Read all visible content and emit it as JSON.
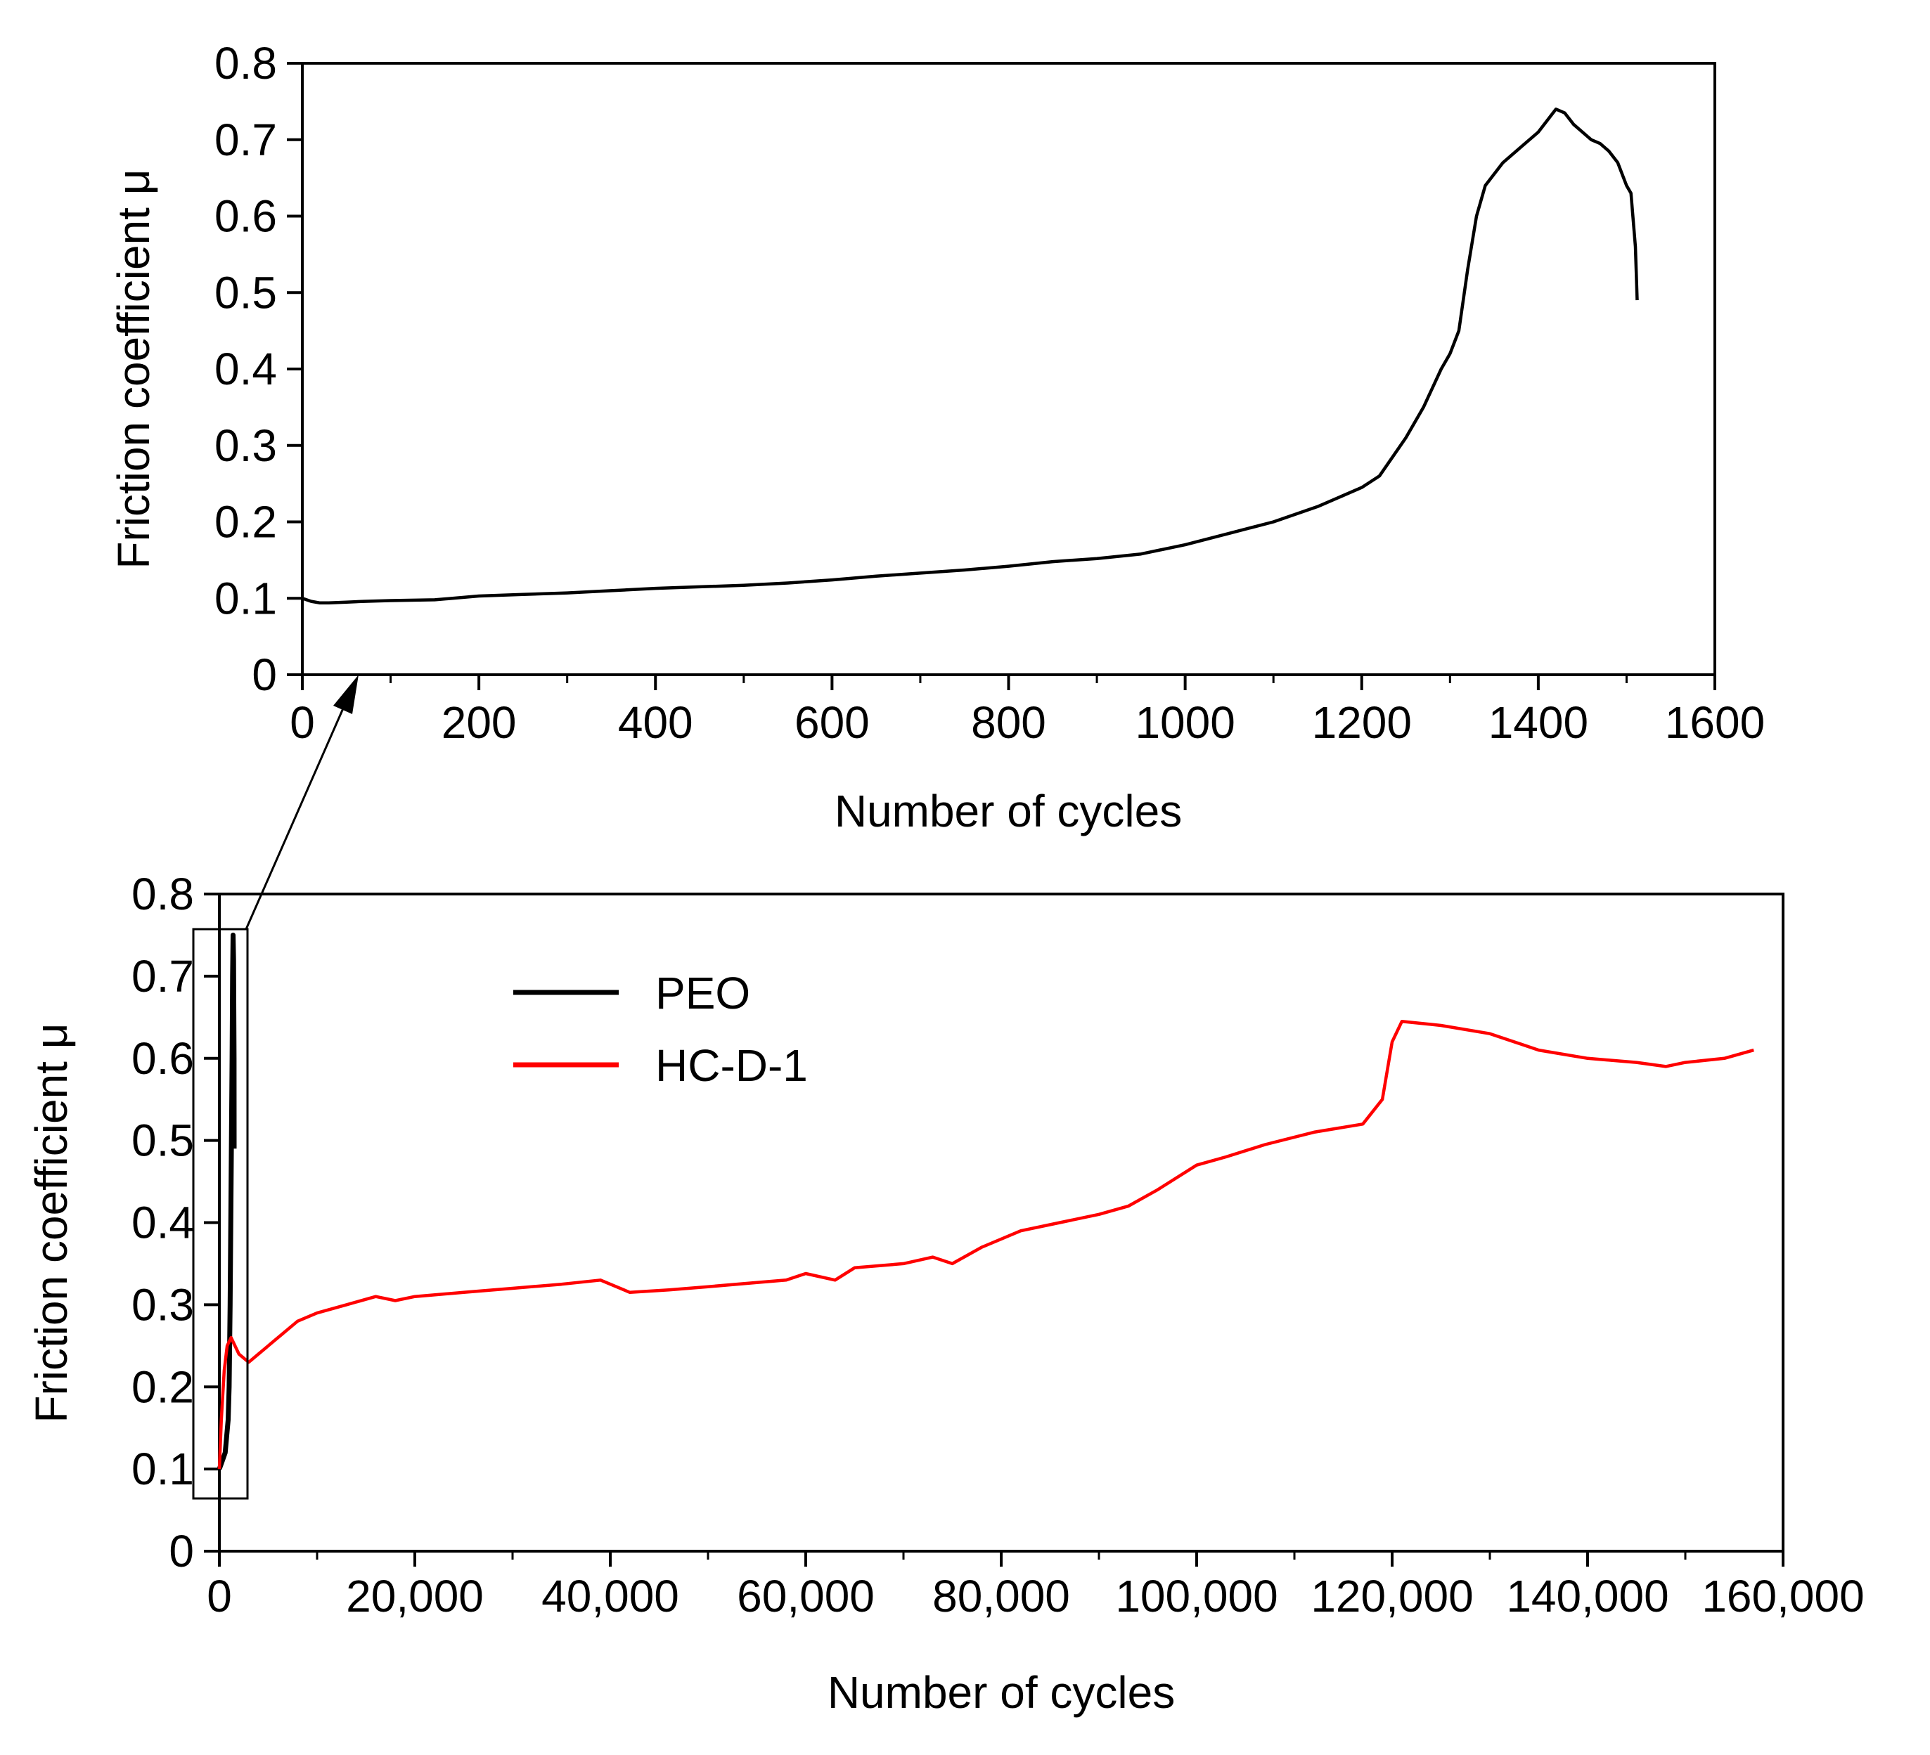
{
  "chart_data": [
    {
      "id": "top",
      "type": "line",
      "title": "",
      "xlabel": "Number of cycles",
      "ylabel": "Friction coefficient μ",
      "xlim": [
        0,
        1600
      ],
      "ylim": [
        0,
        0.8
      ],
      "x_ticks": [
        0,
        200,
        400,
        600,
        800,
        1000,
        1200,
        1400,
        1600
      ],
      "x_tick_labels": [
        "0",
        "200",
        "400",
        "600",
        "800",
        "1000",
        "1200",
        "1400",
        "1600"
      ],
      "y_ticks": [
        0,
        0.1,
        0.2,
        0.3,
        0.4,
        0.5,
        0.6,
        0.7,
        0.8
      ],
      "y_tick_labels": [
        "0",
        "0.1",
        "0.2",
        "0.3",
        "0.4",
        "0.5",
        "0.6",
        "0.7",
        "0.8"
      ],
      "series": [
        {
          "name": "PEO",
          "color": "#000000",
          "x": [
            0,
            10,
            20,
            30,
            50,
            70,
            100,
            150,
            200,
            250,
            300,
            350,
            400,
            450,
            500,
            550,
            600,
            650,
            700,
            750,
            800,
            850,
            900,
            950,
            1000,
            1050,
            1100,
            1150,
            1200,
            1220,
            1250,
            1270,
            1290,
            1300,
            1310,
            1320,
            1330,
            1340,
            1360,
            1380,
            1400,
            1410,
            1420,
            1430,
            1440,
            1450,
            1460,
            1470,
            1480,
            1490,
            1500,
            1505,
            1510,
            1512
          ],
          "y": [
            0.1,
            0.096,
            0.094,
            0.094,
            0.095,
            0.096,
            0.097,
            0.098,
            0.103,
            0.105,
            0.107,
            0.11,
            0.113,
            0.115,
            0.117,
            0.12,
            0.124,
            0.129,
            0.133,
            0.137,
            0.142,
            0.148,
            0.152,
            0.158,
            0.17,
            0.185,
            0.2,
            0.22,
            0.245,
            0.26,
            0.31,
            0.35,
            0.4,
            0.42,
            0.45,
            0.53,
            0.6,
            0.64,
            0.67,
            0.69,
            0.71,
            0.725,
            0.74,
            0.735,
            0.72,
            0.71,
            0.7,
            0.695,
            0.685,
            0.67,
            0.64,
            0.63,
            0.56,
            0.49
          ]
        }
      ]
    },
    {
      "id": "bottom",
      "type": "line",
      "title": "",
      "xlabel": "Number of cycles",
      "ylabel": "Friction coefficient μ",
      "xlim": [
        0,
        160000
      ],
      "ylim": [
        0,
        0.8
      ],
      "x_ticks": [
        0,
        20000,
        40000,
        60000,
        80000,
        100000,
        120000,
        140000,
        160000
      ],
      "x_tick_labels": [
        "0",
        "20,000",
        "40,000",
        "60,000",
        "80,000",
        "100,000",
        "120,000",
        "140,000",
        "160,000"
      ],
      "y_ticks": [
        0,
        0.1,
        0.2,
        0.3,
        0.4,
        0.5,
        0.6,
        0.7,
        0.8
      ],
      "y_tick_labels": [
        "0",
        "0.1",
        "0.2",
        "0.3",
        "0.4",
        "0.5",
        "0.6",
        "0.7",
        "0.8"
      ],
      "legend": {
        "position": "top-left",
        "entries": [
          "PEO",
          "HC-D-1"
        ]
      },
      "series": [
        {
          "name": "PEO",
          "color": "#000000",
          "x": [
            0,
            300,
            600,
            900,
            1000,
            1100,
            1200,
            1300,
            1350,
            1400,
            1450,
            1500,
            1512
          ],
          "y": [
            0.1,
            0.11,
            0.12,
            0.16,
            0.2,
            0.3,
            0.45,
            0.6,
            0.7,
            0.75,
            0.72,
            0.6,
            0.49
          ]
        },
        {
          "name": "HC-D-1",
          "color": "#ff0000",
          "x": [
            0,
            200,
            500,
            800,
            1200,
            2000,
            3000,
            4000,
            6000,
            8000,
            10000,
            13000,
            16000,
            18000,
            20000,
            25000,
            30000,
            35000,
            39000,
            42000,
            46000,
            50000,
            55000,
            58000,
            60000,
            63000,
            65000,
            70000,
            73000,
            75000,
            78000,
            82000,
            86000,
            90000,
            93000,
            96000,
            100000,
            103000,
            107000,
            112000,
            117000,
            119000,
            120000,
            121000,
            125000,
            130000,
            135000,
            140000,
            145000,
            148000,
            150000,
            154000,
            157000
          ],
          "y": [
            0.1,
            0.16,
            0.22,
            0.25,
            0.26,
            0.24,
            0.23,
            0.24,
            0.26,
            0.28,
            0.29,
            0.3,
            0.31,
            0.305,
            0.31,
            0.315,
            0.32,
            0.325,
            0.33,
            0.315,
            0.318,
            0.322,
            0.327,
            0.33,
            0.338,
            0.33,
            0.345,
            0.35,
            0.358,
            0.35,
            0.37,
            0.39,
            0.4,
            0.41,
            0.42,
            0.44,
            0.47,
            0.48,
            0.495,
            0.51,
            0.52,
            0.55,
            0.62,
            0.645,
            0.64,
            0.63,
            0.61,
            0.6,
            0.595,
            0.59,
            0.595,
            0.6,
            0.61
          ]
        }
      ]
    }
  ]
}
